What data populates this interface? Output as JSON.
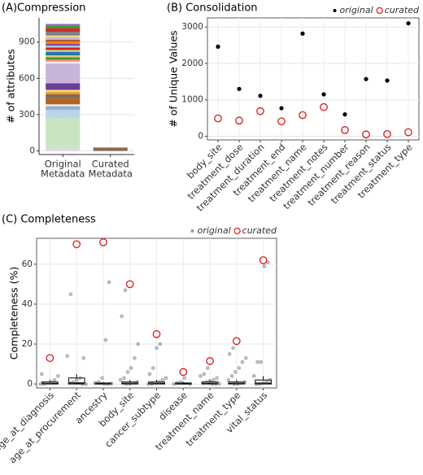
{
  "chart_data": [
    {
      "type": "bar",
      "title": "(A)Compression",
      "ylabel": "# of attributes",
      "categories": [
        [
          "Original",
          "Metadata"
        ],
        [
          "Curated",
          "Metadata"
        ]
      ],
      "ylim": [
        -30,
        1100
      ],
      "yticks": [
        0,
        300,
        600,
        900
      ],
      "grid": true,
      "stacked": true,
      "series": [
        {
          "color": "#e6d5ee",
          "values": [
            20,
            0
          ]
        },
        {
          "color": "#c9e4c0",
          "values": [
            250,
            0
          ]
        },
        {
          "color": "#bcd4e8",
          "values": [
            70,
            0
          ]
        },
        {
          "color": "#8fb0d6",
          "values": [
            30,
            0
          ]
        },
        {
          "color": "#f2f2f2",
          "values": [
            15,
            0
          ]
        },
        {
          "color": "#b5651d",
          "values": [
            45,
            0
          ]
        },
        {
          "color": "#8b6a4f",
          "values": [
            40,
            28
          ]
        },
        {
          "color": "#f39c3c",
          "values": [
            20,
            0
          ]
        },
        {
          "color": "#f5e36b",
          "values": [
            15,
            0
          ]
        },
        {
          "color": "#6a3d9a",
          "values": [
            55,
            0
          ]
        },
        {
          "color": "#c8b4da",
          "values": [
            160,
            0
          ]
        },
        {
          "color": "#e8e8e8",
          "values": [
            20,
            0
          ]
        },
        {
          "color": "#ff7f7f",
          "values": [
            15,
            0
          ]
        },
        {
          "color": "#33a02c",
          "values": [
            20,
            0
          ]
        },
        {
          "color": "#fdbf6f",
          "values": [
            15,
            0
          ]
        },
        {
          "color": "#1f78b4",
          "values": [
            30,
            0
          ]
        },
        {
          "color": "#b2df8a",
          "values": [
            15,
            0
          ]
        },
        {
          "color": "#e31a1c",
          "values": [
            20,
            0
          ]
        },
        {
          "color": "#a6cee3",
          "values": [
            15,
            0
          ]
        },
        {
          "color": "#7b4fa6",
          "values": [
            15,
            0
          ]
        },
        {
          "color": "#ff7f00",
          "values": [
            20,
            0
          ]
        },
        {
          "color": "#b15928",
          "values": [
            15,
            0
          ]
        },
        {
          "color": "#cab2d6",
          "values": [
            20,
            0
          ]
        },
        {
          "color": "#e7d88a",
          "values": [
            15,
            0
          ]
        },
        {
          "color": "#7f7f7f",
          "values": [
            30,
            0
          ]
        },
        {
          "color": "#d62728",
          "values": [
            30,
            0
          ]
        },
        {
          "color": "#2ca02c",
          "values": [
            20,
            0
          ]
        },
        {
          "color": "#9467bd",
          "values": [
            15,
            0
          ]
        }
      ]
    },
    {
      "type": "scatter",
      "title": "(B) Consolidation",
      "ylabel": "# of Unique Values",
      "categories": [
        "body_site",
        "treatment_dose",
        "treatment_duration",
        "treatment_end",
        "treatment_name",
        "treatment_notes",
        "treatment_number",
        "treatment_reason",
        "treatment_status",
        "treatment_type"
      ],
      "ylim": [
        -100,
        3250
      ],
      "yticks": [
        0,
        1000,
        2000,
        3000
      ],
      "grid": true,
      "legend": "top-right",
      "series": [
        {
          "name": "original",
          "color": "#000000",
          "values": [
            2460,
            1300,
            1110,
            770,
            2820,
            1150,
            600,
            1570,
            1530,
            3100
          ]
        },
        {
          "name": "curated",
          "color": "#d7191c",
          "values": [
            490,
            430,
            690,
            410,
            580,
            800,
            170,
            50,
            60,
            110
          ]
        }
      ]
    },
    {
      "type": "box",
      "title": "(C) Completeness",
      "ylabel": "Completeness (%)",
      "categories": [
        "age_at_diagnosis",
        "age_at_procurement",
        "ancestry",
        "body_site",
        "cancer_subtype",
        "disease",
        "treatment_name",
        "treatment_type",
        "vital_status"
      ],
      "ylim": [
        -2,
        73
      ],
      "yticks": [
        0,
        20,
        40,
        60
      ],
      "grid": true,
      "legend": "top-right",
      "boxes": [
        {
          "whislo": 0,
          "q1": 0,
          "median": 0.2,
          "q3": 1,
          "whishi": 2
        },
        {
          "whislo": 0,
          "q1": 0,
          "median": 0.5,
          "q3": 3,
          "whishi": 5
        },
        {
          "whislo": 0,
          "q1": 0,
          "median": 0.1,
          "q3": 0.5,
          "whishi": 1
        },
        {
          "whislo": 0,
          "q1": 0,
          "median": 0.2,
          "q3": 1,
          "whishi": 2
        },
        {
          "whislo": 0,
          "q1": 0,
          "median": 0.2,
          "q3": 1,
          "whishi": 2
        },
        {
          "whislo": 0,
          "q1": 0,
          "median": 0.1,
          "q3": 0.5,
          "whishi": 1
        },
        {
          "whislo": 0,
          "q1": 0,
          "median": 0.2,
          "q3": 1,
          "whishi": 2
        },
        {
          "whislo": 0,
          "q1": 0,
          "median": 0.2,
          "q3": 1,
          "whishi": 2
        },
        {
          "whislo": 0,
          "q1": 0,
          "median": 0.3,
          "q3": 2,
          "whishi": 4
        }
      ],
      "series": [
        {
          "name": "original",
          "color": "#555555",
          "values": [
            [
              0,
              0,
              0.5,
              1,
              2,
              4,
              5
            ],
            [
              0,
              0,
              0.5,
              1,
              2,
              3,
              13,
              14,
              45
            ],
            [
              0,
              0,
              0.2,
              0.5,
              1,
              3,
              22,
              51
            ],
            [
              0,
              0,
              0.5,
              1,
              2,
              3,
              6,
              8,
              13,
              20,
              34,
              47
            ],
            [
              0,
              0,
              0.5,
              1,
              2,
              3,
              5,
              8,
              18,
              20
            ],
            [
              0,
              0,
              0.5,
              1,
              3
            ],
            [
              0,
              0,
              0.2,
              0.5,
              1,
              1.5,
              2,
              3,
              4,
              5,
              8
            ],
            [
              0,
              0,
              0.5,
              1,
              2,
              4,
              6,
              8,
              11,
              13,
              15,
              18
            ],
            [
              0,
              0,
              0.5,
              1,
              2,
              4,
              11,
              11,
              59,
              61
            ]
          ]
        },
        {
          "name": "curated",
          "color": "#d7191c",
          "values": [
            13,
            70,
            71,
            50,
            25,
            6,
            11.5,
            21.5,
            62
          ]
        }
      ]
    }
  ]
}
